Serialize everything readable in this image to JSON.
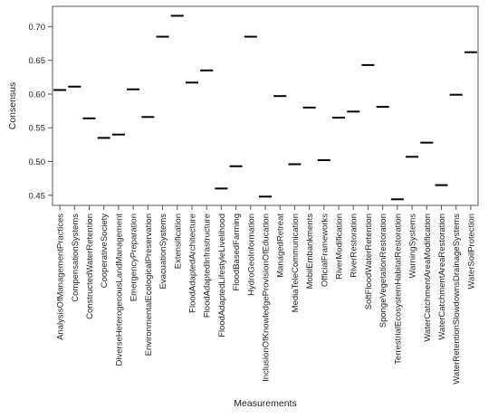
{
  "chart_data": {
    "type": "scatter",
    "marker": "horizontal-dash",
    "xlabel": "Measurements",
    "ylabel": "Consensus",
    "ylim": [
      0.435,
      0.73
    ],
    "yticks": [
      0.45,
      0.5,
      0.55,
      0.6,
      0.65,
      0.7
    ],
    "ytick_labels": [
      "0.45",
      "0.50",
      "0.55",
      "0.60",
      "0.65",
      "0.70"
    ],
    "grid": false,
    "legend": "none",
    "colors": {
      "marker": "#000000",
      "axis": "#555555",
      "text": "#222222"
    },
    "categories": [
      "AnalysisOfManagementPractices",
      "CompensationSystems",
      "ConstructedWaterRetention",
      "CooperativeSociety",
      "DiverseHeterogenousLandManagement",
      "EmergencyPreparation",
      "EnvironmentalEcologicalPreservation",
      "EvacuationSystems",
      "Extensification",
      "FloodAdaptedArchitecture",
      "FloodAdaptedInfrastructure",
      "FloodAdaptedLifestyleLivelihood",
      "FloodBasedFarming",
      "HydroGeoInformation",
      "InclusionOfKnowledgeProvisionOfEducation",
      "ManagedRetreat",
      "MediaTeleCommunication",
      "MobilEmbankments",
      "OfficialFrameworks",
      "RiverModification",
      "RiverRestoration",
      "SoftFloodWaterRetention",
      "SpongeVegetationRestoration",
      "TerrestrialEcosystemHabitatRestoration",
      "WarningSystems",
      "WaterCatchmentAreaModification",
      "WaterCatchmentAreaRestoration",
      "WaterRetentionSlowdownsDrainageSystems",
      "WaterSoilProtection"
    ],
    "values": [
      0.606,
      0.611,
      0.564,
      0.535,
      0.54,
      0.607,
      0.566,
      0.685,
      0.716,
      0.617,
      0.635,
      0.46,
      0.493,
      0.685,
      0.448,
      0.597,
      0.496,
      0.58,
      0.502,
      0.565,
      0.574,
      0.643,
      0.581,
      0.444,
      0.507,
      0.528,
      0.465,
      0.599,
      0.662
    ]
  }
}
